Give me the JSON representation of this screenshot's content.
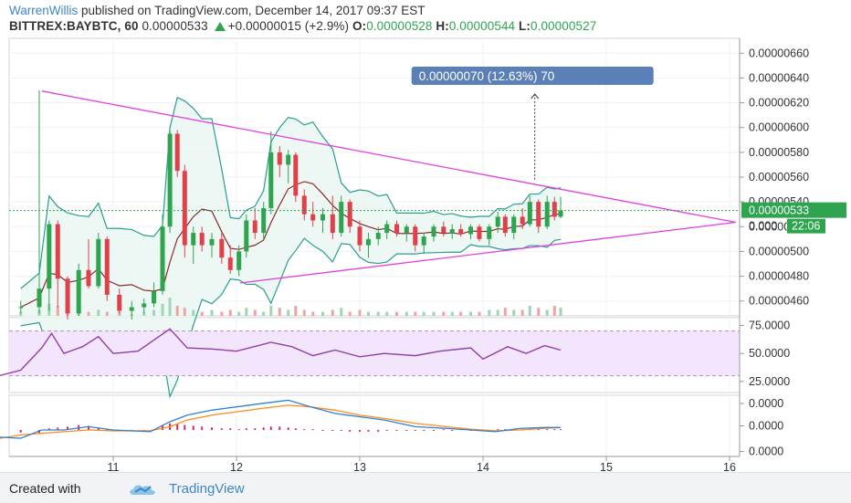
{
  "header": {
    "author": "WarrenWillis",
    "published_text": " published on TradingView.com, December 14, 2017 09:37 EST"
  },
  "ticker": {
    "symbol": "BITTREX:BAYBTC, 60",
    "last": "0.00000533",
    "change": "+0.00000015 (+2.9%)",
    "open_label": "O:",
    "open": "0.00000528",
    "high_label": "H:",
    "high": "0.00000544",
    "low_label": "L:",
    "low": "0.00000527",
    "up_color": "#2ea44f"
  },
  "footer": {
    "created_with": "Created with",
    "brand": "TradingView",
    "logo_icon": "tradingview-cloud-icon"
  },
  "chart_data": {
    "type": "candlestick",
    "x_tick_labels": [
      "11",
      "12",
      "13",
      "14",
      "15",
      "16"
    ],
    "price_axis": {
      "ticks": [
        "0.00000660",
        "0.00000640",
        "0.00000620",
        "0.00000600",
        "0.00000580",
        "0.00000560",
        "0.00000540",
        "0.00000520",
        "0.00000500",
        "0.00000480",
        "0.00000460"
      ],
      "ylim": [
        4.48e-06,
        6.72e-06
      ],
      "last_price_label": "0.00000533",
      "partial_label": "0.000",
      "countdown_label": "22:06",
      "grid": true
    },
    "annotation": {
      "text": "0.00000070 (12.63%) 70",
      "color": "#5b80b8"
    },
    "trendlines": [
      {
        "from": {
          "day": 10.42,
          "price": 6.295e-06
        },
        "to": {
          "day": 16.05,
          "price": 5.235e-06
        }
      },
      {
        "from": {
          "day": 12.03,
          "price": 4.745e-06
        },
        "to": {
          "day": 16.05,
          "price": 5.235e-06
        }
      }
    ],
    "ohlc": [
      {
        "d": 10.25,
        "o": 4.55,
        "h": 4.6,
        "l": 4.5,
        "c": 4.55
      },
      {
        "d": 10.4,
        "o": 4.55,
        "h": 6.3,
        "l": 4.5,
        "c": 4.7
      },
      {
        "d": 10.48,
        "o": 4.7,
        "h": 5.25,
        "l": 4.52,
        "c": 5.22
      },
      {
        "d": 10.55,
        "o": 5.22,
        "h": 5.25,
        "l": 4.55,
        "c": 4.78
      },
      {
        "d": 10.63,
        "o": 4.78,
        "h": 4.8,
        "l": 4.45,
        "c": 4.5
      },
      {
        "d": 10.72,
        "o": 4.5,
        "h": 4.9,
        "l": 4.48,
        "c": 4.85
      },
      {
        "d": 10.8,
        "o": 4.85,
        "h": 5.1,
        "l": 4.7,
        "c": 4.72
      },
      {
        "d": 10.88,
        "o": 4.72,
        "h": 5.15,
        "l": 4.7,
        "c": 5.1
      },
      {
        "d": 10.95,
        "o": 5.1,
        "h": 5.12,
        "l": 4.6,
        "c": 4.65
      },
      {
        "d": 11.05,
        "o": 4.65,
        "h": 4.7,
        "l": 4.5,
        "c": 4.52
      },
      {
        "d": 11.15,
        "o": 4.52,
        "h": 4.6,
        "l": 4.45,
        "c": 4.55
      },
      {
        "d": 11.25,
        "o": 4.55,
        "h": 4.62,
        "l": 4.5,
        "c": 4.58
      },
      {
        "d": 11.33,
        "o": 4.58,
        "h": 4.75,
        "l": 4.55,
        "c": 4.68
      },
      {
        "d": 11.4,
        "o": 4.68,
        "h": 5.3,
        "l": 4.65,
        "c": 5.2
      },
      {
        "d": 11.46,
        "o": 5.2,
        "h": 5.98,
        "l": 5.15,
        "c": 5.95
      },
      {
        "d": 11.52,
        "o": 5.95,
        "h": 5.98,
        "l": 5.6,
        "c": 5.65
      },
      {
        "d": 11.58,
        "o": 5.65,
        "h": 5.7,
        "l": 4.95,
        "c": 5.05
      },
      {
        "d": 11.65,
        "o": 5.05,
        "h": 5.2,
        "l": 4.9,
        "c": 5.15
      },
      {
        "d": 11.72,
        "o": 5.15,
        "h": 5.2,
        "l": 5.0,
        "c": 5.05
      },
      {
        "d": 11.8,
        "o": 5.05,
        "h": 5.15,
        "l": 4.95,
        "c": 5.1
      },
      {
        "d": 11.88,
        "o": 5.1,
        "h": 5.15,
        "l": 4.9,
        "c": 4.95
      },
      {
        "d": 11.95,
        "o": 4.95,
        "h": 5.05,
        "l": 4.82,
        "c": 4.85
      },
      {
        "d": 12.02,
        "o": 4.85,
        "h": 5.05,
        "l": 4.8,
        "c": 5.0
      },
      {
        "d": 12.08,
        "o": 5.0,
        "h": 5.3,
        "l": 4.95,
        "c": 5.25
      },
      {
        "d": 12.15,
        "o": 5.25,
        "h": 5.35,
        "l": 5.1,
        "c": 5.15
      },
      {
        "d": 12.22,
        "o": 5.15,
        "h": 5.4,
        "l": 5.1,
        "c": 5.35
      },
      {
        "d": 12.28,
        "o": 5.35,
        "h": 5.97,
        "l": 5.3,
        "c": 5.8
      },
      {
        "d": 12.35,
        "o": 5.8,
        "h": 5.85,
        "l": 5.6,
        "c": 5.7
      },
      {
        "d": 12.42,
        "o": 5.7,
        "h": 5.82,
        "l": 5.55,
        "c": 5.78
      },
      {
        "d": 12.48,
        "o": 5.78,
        "h": 5.8,
        "l": 5.4,
        "c": 5.45
      },
      {
        "d": 12.55,
        "o": 5.45,
        "h": 5.5,
        "l": 5.25,
        "c": 5.3
      },
      {
        "d": 12.62,
        "o": 5.3,
        "h": 5.4,
        "l": 5.2,
        "c": 5.25
      },
      {
        "d": 12.7,
        "o": 5.25,
        "h": 5.35,
        "l": 5.15,
        "c": 5.3
      },
      {
        "d": 12.78,
        "o": 5.3,
        "h": 5.45,
        "l": 5.1,
        "c": 5.15
      },
      {
        "d": 12.85,
        "o": 5.15,
        "h": 5.45,
        "l": 5.12,
        "c": 5.4
      },
      {
        "d": 12.92,
        "o": 5.4,
        "h": 5.42,
        "l": 5.15,
        "c": 5.2
      },
      {
        "d": 13.0,
        "o": 5.2,
        "h": 5.25,
        "l": 5.0,
        "c": 5.05
      },
      {
        "d": 13.07,
        "o": 5.05,
        "h": 5.15,
        "l": 4.95,
        "c": 5.1
      },
      {
        "d": 13.15,
        "o": 5.1,
        "h": 5.2,
        "l": 5.05,
        "c": 5.15
      },
      {
        "d": 13.22,
        "o": 5.15,
        "h": 5.25,
        "l": 5.1,
        "c": 5.22
      },
      {
        "d": 13.3,
        "o": 5.22,
        "h": 5.25,
        "l": 5.12,
        "c": 5.15
      },
      {
        "d": 13.38,
        "o": 5.15,
        "h": 5.22,
        "l": 5.08,
        "c": 5.2
      },
      {
        "d": 13.45,
        "o": 5.2,
        "h": 5.22,
        "l": 5.0,
        "c": 5.05
      },
      {
        "d": 13.52,
        "o": 5.05,
        "h": 5.15,
        "l": 4.98,
        "c": 5.12
      },
      {
        "d": 13.6,
        "o": 5.12,
        "h": 5.22,
        "l": 5.08,
        "c": 5.2
      },
      {
        "d": 13.68,
        "o": 5.2,
        "h": 5.24,
        "l": 5.12,
        "c": 5.15
      },
      {
        "d": 13.75,
        "o": 5.15,
        "h": 5.22,
        "l": 5.1,
        "c": 5.18
      },
      {
        "d": 13.82,
        "o": 5.18,
        "h": 5.22,
        "l": 5.12,
        "c": 5.14
      },
      {
        "d": 13.9,
        "o": 5.14,
        "h": 5.22,
        "l": 5.1,
        "c": 5.2
      },
      {
        "d": 13.97,
        "o": 5.2,
        "h": 5.22,
        "l": 5.08,
        "c": 5.1
      },
      {
        "d": 14.05,
        "o": 5.1,
        "h": 5.22,
        "l": 5.05,
        "c": 5.2
      },
      {
        "d": 14.12,
        "o": 5.2,
        "h": 5.32,
        "l": 5.15,
        "c": 5.28
      },
      {
        "d": 14.18,
        "o": 5.28,
        "h": 5.3,
        "l": 5.12,
        "c": 5.15
      },
      {
        "d": 14.25,
        "o": 5.15,
        "h": 5.3,
        "l": 5.1,
        "c": 5.28
      },
      {
        "d": 14.32,
        "o": 5.28,
        "h": 5.35,
        "l": 5.18,
        "c": 5.22
      },
      {
        "d": 14.38,
        "o": 5.22,
        "h": 5.45,
        "l": 5.2,
        "c": 5.4
      },
      {
        "d": 14.45,
        "o": 5.4,
        "h": 5.42,
        "l": 5.15,
        "c": 5.2
      },
      {
        "d": 14.52,
        "o": 5.2,
        "h": 5.45,
        "l": 5.18,
        "c": 5.4
      },
      {
        "d": 14.58,
        "o": 5.4,
        "h": 5.44,
        "l": 5.25,
        "c": 5.28
      },
      {
        "d": 14.63,
        "o": 5.28,
        "h": 5.44,
        "l": 5.27,
        "c": 5.33
      }
    ],
    "volume": [
      2,
      3,
      6,
      5,
      3,
      4,
      2,
      3,
      2,
      2,
      1,
      2,
      3,
      6,
      9,
      5,
      4,
      3,
      2,
      3,
      2,
      3,
      2,
      4,
      3,
      2,
      5,
      4,
      3,
      5,
      3,
      2,
      2,
      3,
      4,
      2,
      3,
      2,
      2,
      2,
      2,
      2,
      2,
      2,
      2,
      2,
      2,
      2,
      2,
      2,
      3,
      3,
      4,
      3,
      3,
      5,
      4,
      3,
      5,
      4
    ],
    "rsi": {
      "ticks": [
        "75.0000",
        "50.0000",
        "25.0000"
      ],
      "ylim": [
        15,
        82
      ],
      "band": [
        30,
        70
      ],
      "values": [
        [
          10.0,
          28
        ],
        [
          10.25,
          35
        ],
        [
          10.42,
          55
        ],
        [
          10.5,
          68
        ],
        [
          10.6,
          50
        ],
        [
          10.75,
          56
        ],
        [
          10.88,
          65
        ],
        [
          11.0,
          50
        ],
        [
          11.2,
          52
        ],
        [
          11.46,
          72
        ],
        [
          11.6,
          55
        ],
        [
          11.8,
          54
        ],
        [
          12.0,
          52
        ],
        [
          12.28,
          60
        ],
        [
          12.45,
          56
        ],
        [
          12.62,
          48
        ],
        [
          12.8,
          53
        ],
        [
          13.0,
          47
        ],
        [
          13.2,
          50
        ],
        [
          13.45,
          48
        ],
        [
          13.65,
          52
        ],
        [
          13.9,
          55
        ],
        [
          14.0,
          45
        ],
        [
          14.2,
          56
        ],
        [
          14.35,
          50
        ],
        [
          14.5,
          57
        ],
        [
          14.63,
          53
        ]
      ]
    },
    "macd": {
      "ticks": [
        "0.0000",
        "0.0000",
        "0.0000"
      ],
      "ylim": [
        -32,
        42
      ],
      "macd_line": [
        [
          10.0,
          -8
        ],
        [
          10.25,
          -10
        ],
        [
          10.42,
          0
        ],
        [
          10.6,
          0
        ],
        [
          10.8,
          4
        ],
        [
          11.0,
          0
        ],
        [
          11.3,
          -2
        ],
        [
          11.46,
          10
        ],
        [
          11.6,
          18
        ],
        [
          11.8,
          24
        ],
        [
          12.0,
          28
        ],
        [
          12.2,
          32
        ],
        [
          12.42,
          36
        ],
        [
          12.6,
          28
        ],
        [
          12.8,
          20
        ],
        [
          13.0,
          16
        ],
        [
          13.2,
          12
        ],
        [
          13.45,
          4
        ],
        [
          13.7,
          2
        ],
        [
          13.9,
          0
        ],
        [
          14.1,
          -2
        ],
        [
          14.3,
          2
        ],
        [
          14.5,
          3
        ],
        [
          14.63,
          3
        ]
      ],
      "signal_line": [
        [
          10.0,
          -12
        ],
        [
          10.25,
          -6
        ],
        [
          10.42,
          -4
        ],
        [
          10.6,
          -2
        ],
        [
          10.8,
          0
        ],
        [
          11.0,
          -1
        ],
        [
          11.3,
          -1
        ],
        [
          11.46,
          4
        ],
        [
          11.6,
          12
        ],
        [
          11.8,
          18
        ],
        [
          12.0,
          22
        ],
        [
          12.2,
          26
        ],
        [
          12.42,
          30
        ],
        [
          12.6,
          28
        ],
        [
          12.8,
          24
        ],
        [
          13.0,
          18
        ],
        [
          13.2,
          14
        ],
        [
          13.45,
          8
        ],
        [
          13.7,
          4
        ],
        [
          13.9,
          1
        ],
        [
          14.1,
          -1
        ],
        [
          14.3,
          0
        ],
        [
          14.5,
          2
        ],
        [
          14.63,
          3
        ]
      ],
      "histogram": [
        -3,
        -4,
        2,
        3,
        4,
        6,
        5,
        3,
        1,
        0,
        -1,
        0,
        1,
        6,
        8,
        7,
        6,
        5,
        4,
        3,
        2,
        2,
        1,
        2,
        2,
        3,
        4,
        4,
        3,
        2,
        1,
        1,
        0,
        -1,
        -1,
        -2,
        -2,
        -2,
        -2,
        -1,
        -1,
        0,
        -1,
        0,
        0,
        1,
        0,
        1,
        0,
        0,
        0,
        1,
        1,
        1,
        1,
        1,
        1,
        1,
        1,
        1
      ],
      "macd_color": "#2f80d6",
      "signal_color": "#ff8c1a",
      "histogram_color": "#e0245e"
    }
  }
}
